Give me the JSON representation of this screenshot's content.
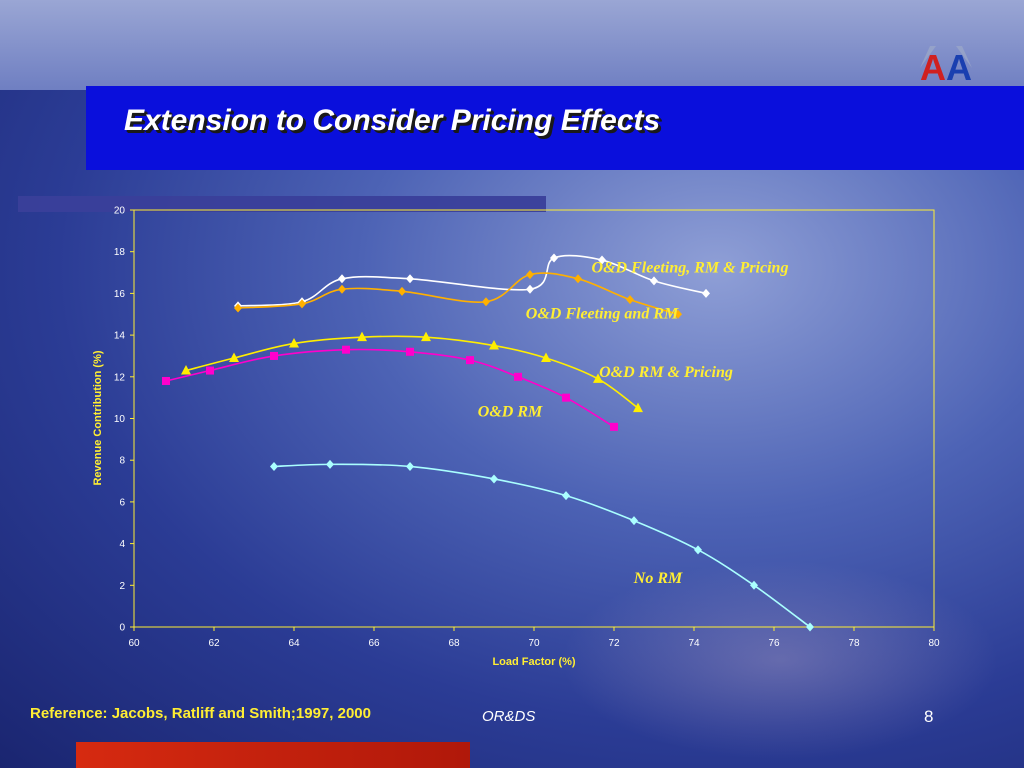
{
  "slide": {
    "title": "Extension to Consider Pricing Effects",
    "reference": "Reference: Jacobs, Ratliff and Smith;1997, 2000",
    "footer_center": "OR&DS",
    "page_number": "8",
    "logo_text": "AA"
  },
  "colors": {
    "title_bar": "#0a0fdc",
    "axis": "#ffee33",
    "label_text": "#ffee33",
    "reference_text": "#ffee33",
    "bottom_bar": "#d62a10"
  },
  "chart_data": {
    "type": "line",
    "xlabel": "Load Factor (%)",
    "ylabel": "Revenue Contribution (%)",
    "xlim": [
      60,
      80
    ],
    "ylim": [
      0,
      20
    ],
    "xticks": [
      60,
      62,
      64,
      66,
      68,
      70,
      72,
      74,
      76,
      78,
      80
    ],
    "yticks": [
      0,
      2,
      4,
      6,
      8,
      10,
      12,
      14,
      16,
      18,
      20
    ],
    "grid": false,
    "series": [
      {
        "name": "O&D Fleeting, RM & Pricing",
        "color": "#ffffff",
        "marker": "diamond",
        "points": [
          [
            62.6,
            15.4
          ],
          [
            64.2,
            15.6
          ],
          [
            65.2,
            16.7
          ],
          [
            66.9,
            16.7
          ],
          [
            69.9,
            16.2
          ],
          [
            70.5,
            17.7
          ],
          [
            71.7,
            17.6
          ],
          [
            73.0,
            16.6
          ],
          [
            74.3,
            16.0
          ]
        ]
      },
      {
        "name": "O&D Fleeting and RM",
        "color": "#ffb000",
        "marker": "diamond",
        "points": [
          [
            62.6,
            15.3
          ],
          [
            64.2,
            15.5
          ],
          [
            65.2,
            16.2
          ],
          [
            66.7,
            16.1
          ],
          [
            68.8,
            15.6
          ],
          [
            69.9,
            16.9
          ],
          [
            71.1,
            16.7
          ],
          [
            72.4,
            15.7
          ],
          [
            73.6,
            15.0
          ]
        ]
      },
      {
        "name": "O&D RM & Pricing",
        "color": "#ffee00",
        "marker": "triangle",
        "points": [
          [
            61.3,
            12.3
          ],
          [
            62.5,
            12.9
          ],
          [
            64.0,
            13.6
          ],
          [
            65.7,
            13.9
          ],
          [
            67.3,
            13.9
          ],
          [
            69.0,
            13.5
          ],
          [
            70.3,
            12.9
          ],
          [
            71.6,
            11.9
          ],
          [
            72.6,
            10.5
          ]
        ]
      },
      {
        "name": "O&D RM",
        "color": "#ff00cc",
        "marker": "square",
        "points": [
          [
            60.8,
            11.8
          ],
          [
            61.9,
            12.3
          ],
          [
            63.5,
            13.0
          ],
          [
            65.3,
            13.3
          ],
          [
            66.9,
            13.2
          ],
          [
            68.4,
            12.8
          ],
          [
            69.6,
            12.0
          ],
          [
            70.8,
            11.0
          ],
          [
            72.0,
            9.6
          ]
        ]
      },
      {
        "name": "No RM",
        "color": "#aaffff",
        "marker": "diamond",
        "points": [
          [
            63.5,
            7.7
          ],
          [
            64.9,
            7.8
          ],
          [
            66.9,
            7.7
          ],
          [
            69.0,
            7.1
          ],
          [
            70.8,
            6.3
          ],
          [
            72.5,
            5.1
          ],
          [
            74.1,
            3.7
          ],
          [
            75.5,
            2.0
          ],
          [
            76.9,
            0.0
          ]
        ]
      }
    ],
    "annotations": [
      {
        "text": "O&D Fleeting, RM & Pricing",
        "x": 73.9,
        "y": 17.0
      },
      {
        "text": "O&D Fleeting and RM",
        "x": 71.7,
        "y": 14.8
      },
      {
        "text": "O&D RM & Pricing",
        "x": 73.3,
        "y": 12.0
      },
      {
        "text": "O&D RM",
        "x": 69.4,
        "y": 10.1
      },
      {
        "text": "No RM",
        "x": 73.1,
        "y": 2.1
      }
    ]
  }
}
